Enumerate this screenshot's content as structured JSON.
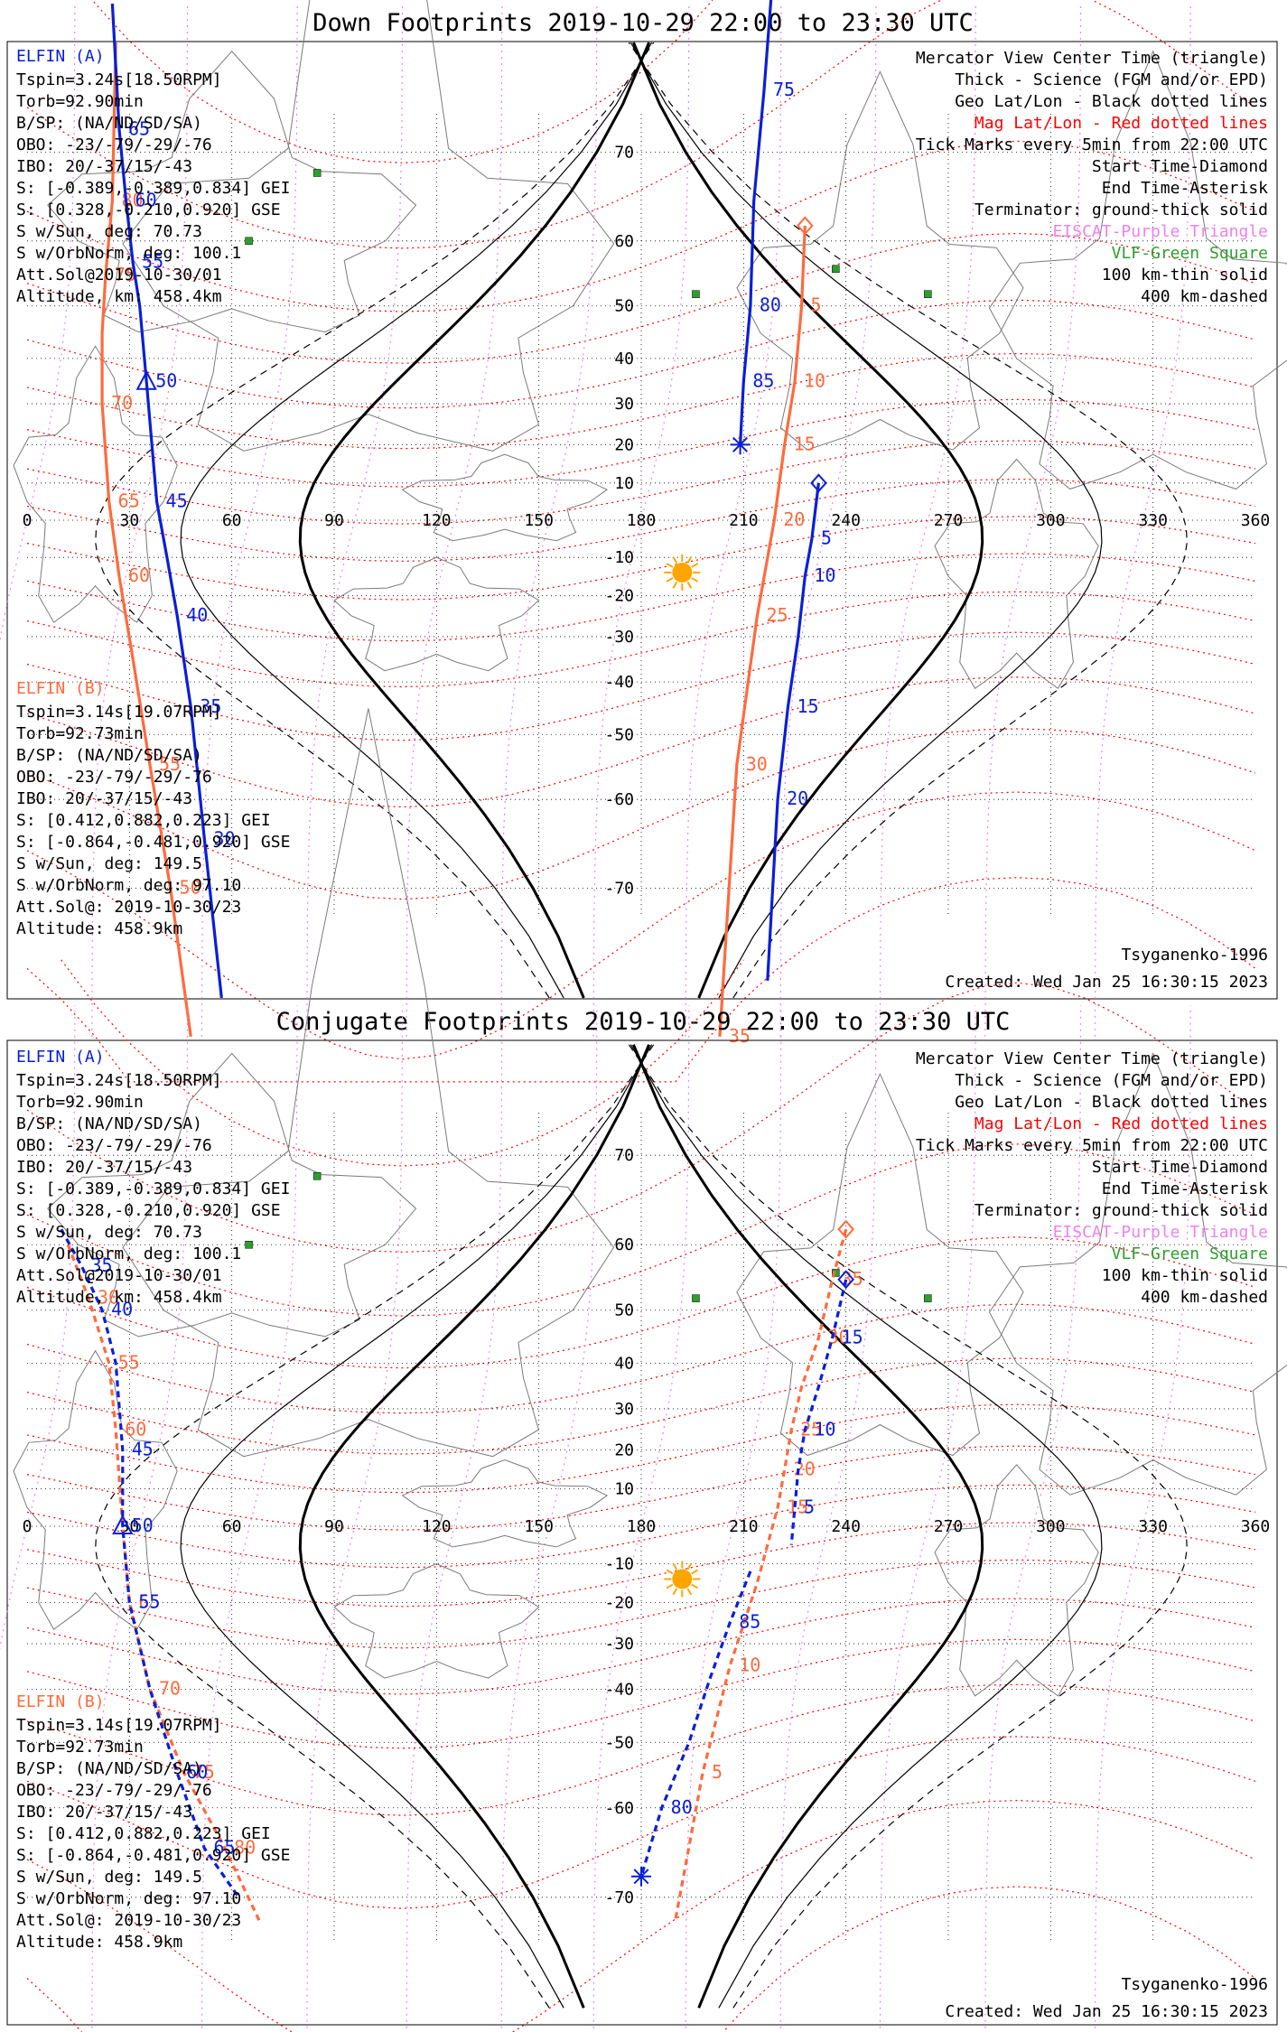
{
  "colors": {
    "elfin_a": "#0a1fd6",
    "elfin_b": "#ff6a3d",
    "mag_grid": "#ff0000",
    "geo_grid": "#000000",
    "eiscat": "#ee82ee",
    "vlf": "#2e9e2e",
    "sun": "#ffa500",
    "coast": "#7a7a7a"
  },
  "panels": [
    {
      "title": "Down Footprints 2019-10-29 22:00 to 23:30 UTC",
      "elfin_a_header": "ELFIN (A)",
      "elfin_a_lines": [
        "Tspin=3.24s[18.50RPM]",
        "Torb=92.90min",
        "B/SP: (NA/ND/SD/SA)",
        "OBO: -23/-79/-29/-76",
        "IBO: 20/-37/15/-43",
        "S: [-0.389,-0.389,0.834] GEI",
        "S: [0.328,-0.210,0.920] GSE",
        "S w/Sun, deg: 70.73",
        "S w/OrbNorm, deg: 100.1",
        "Att.Sol@2019-10-30/01",
        "Altitude, km: 458.4km"
      ],
      "elfin_b_header": "ELFIN (B)",
      "elfin_b_lines": [
        "Tspin=3.14s[19.07RPM]",
        "Torb=92.73min",
        "B/SP: (NA/ND/SD/SA)",
        "OBO: -23/-79/-29/-76",
        "IBO: 20/-37/15/-43",
        "S: [0.412,0.882,0.223] GEI",
        "S: [-0.864,-0.481,0.920] GSE",
        "S w/Sun, deg: 149.5",
        "S w/OrbNorm, deg: 97.10",
        "Att.Sol@: 2019-10-30/23",
        "Altitude: 458.9km"
      ],
      "legend": [
        {
          "text": "Mercator View Center Time (triangle)",
          "color": "#000000"
        },
        {
          "text": "Thick - Science (FGM and/or EPD)",
          "color": "#000000"
        },
        {
          "text": "Geo Lat/Lon - Black dotted lines",
          "color": "#000000"
        },
        {
          "text": "Mag Lat/Lon - Red dotted lines",
          "color": "#ff0000"
        },
        {
          "text": "Tick Marks every 5min from 22:00 UTC",
          "color": "#000000"
        },
        {
          "text": "Start Time-Diamond",
          "color": "#000000"
        },
        {
          "text": "End Time-Asterisk",
          "color": "#000000"
        },
        {
          "text": "Terminator: ground-thick solid",
          "color": "#000000"
        },
        {
          "text": "EISCAT-Purple Triangle",
          "color": "#ee82ee"
        },
        {
          "text": "VLF-Green Square",
          "color": "#2e9e2e"
        },
        {
          "text": "100 km-thin solid",
          "color": "#000000"
        },
        {
          "text": "400 km-dashed",
          "color": "#000000"
        }
      ],
      "footer_left": "",
      "footer_right_1": "Tsyganenko-1996",
      "footer_right_2": "Created: Wed Jan 25 16:30:15 2023",
      "lon_ticks": [
        "0",
        "30",
        "60",
        "90",
        "120",
        "150",
        "180",
        "210",
        "240",
        "270",
        "300",
        "330",
        "360"
      ],
      "lat_ticks": [
        "70",
        "60",
        "50",
        "40",
        "30",
        "20",
        "10",
        "-10",
        "-20",
        "-30",
        "-40",
        "-50",
        "-60",
        "-70"
      ],
      "tracks": {
        "a_left": {
          "lon": [
            25,
            27,
            29,
            31,
            33,
            35,
            38,
            41,
            44,
            48,
            52,
            57
          ],
          "lat": [
            80,
            72,
            65,
            57,
            50,
            35,
            5,
            -10,
            -25,
            -45,
            -65,
            -78
          ],
          "labels": [
            "65",
            "60",
            "55",
            "50",
            "45",
            "40",
            "35",
            "30"
          ]
        },
        "b_left": {
          "lon": [
            26,
            25,
            23,
            22,
            22,
            24,
            27,
            31,
            36,
            42,
            48
          ],
          "lat": [
            78,
            65,
            55,
            45,
            30,
            5,
            -15,
            -35,
            -55,
            -70,
            -80
          ],
          "labels": [
            "80",
            "75",
            "70",
            "65",
            "60",
            "55",
            "50"
          ]
        },
        "a_right": {
          "lon": [
            219,
            216,
            213,
            212,
            210,
            209
          ],
          "lat": [
            82,
            75,
            65,
            50,
            35,
            20
          ],
          "labels": [
            "75",
            "80",
            "85"
          ]
        },
        "b_right": {
          "lon": [
            228,
            227,
            225,
            222,
            219,
            214,
            208,
            203
          ],
          "lat": [
            62,
            50,
            35,
            20,
            0,
            -25,
            -55,
            -80
          ],
          "labels": [
            "5",
            "10",
            "15",
            "20",
            "25",
            "30",
            "35"
          ]
        },
        "a_right2": {
          "lon": [
            232,
            230,
            228,
            226,
            223,
            220,
            217
          ],
          "lat": [
            10,
            -5,
            -15,
            -30,
            -45,
            -60,
            -77
          ],
          "labels": [
            "5",
            "10",
            "15",
            "20"
          ]
        }
      }
    },
    {
      "title": "Conjugate Footprints 2019-10-29 22:00 to 23:30 UTC",
      "elfin_a_header": "ELFIN (A)",
      "elfin_a_lines": [
        "Tspin=3.24s[18.50RPM]",
        "Torb=92.90min",
        "B/SP: (NA/ND/SD/SA)",
        "OBO: -23/-79/-29/-76",
        "IBO: 20/-37/15/-43",
        "S: [-0.389,-0.389,0.834] GEI",
        "S: [0.328,-0.210,0.920] GSE",
        "S w/Sun, deg: 70.73",
        "S w/OrbNorm, deg: 100.1",
        "Att.Sol@2019-10-30/01",
        "Altitude, km: 458.4km"
      ],
      "elfin_b_header": "ELFIN (B)",
      "elfin_b_lines": [
        "Tspin=3.14s[19.07RPM]",
        "Torb=92.73min",
        "B/SP: (NA/ND/SD/SA)",
        "OBO: -23/-79/-29/-76",
        "IBO: 20/-37/15/-43",
        "S: [0.412,0.882,0.223] GEI",
        "S: [-0.864,-0.481,0.920] GSE",
        "S w/Sun, deg: 149.5",
        "S w/OrbNorm, deg: 97.10",
        "Att.Sol@: 2019-10-30/23",
        "Altitude: 458.9km"
      ],
      "legend": [
        {
          "text": "Mercator View Center Time (triangle)",
          "color": "#000000"
        },
        {
          "text": "Thick - Science (FGM and/or EPD)",
          "color": "#000000"
        },
        {
          "text": "Geo Lat/Lon - Black dotted lines",
          "color": "#000000"
        },
        {
          "text": "Mag Lat/Lon - Red dotted lines",
          "color": "#ff0000"
        },
        {
          "text": "Tick Marks every 5min from 22:00 UTC",
          "color": "#000000"
        },
        {
          "text": "Start Time-Diamond",
          "color": "#000000"
        },
        {
          "text": "End Time-Asterisk",
          "color": "#000000"
        },
        {
          "text": "Terminator: ground-thick solid",
          "color": "#000000"
        },
        {
          "text": "EISCAT-Purple Triangle",
          "color": "#ee82ee"
        },
        {
          "text": "VLF-Green Square",
          "color": "#2e9e2e"
        },
        {
          "text": "100 km-thin solid",
          "color": "#000000"
        },
        {
          "text": "400 km-dashed",
          "color": "#000000"
        }
      ],
      "footer_right_1": "Tsyganenko-1996",
      "footer_right_2": "Created: Wed Jan 25 16:30:15 2023",
      "lon_ticks": [
        "0",
        "30",
        "60",
        "90",
        "120",
        "150",
        "180",
        "210",
        "240",
        "270",
        "300",
        "330",
        "360"
      ],
      "lat_ticks": [
        "70",
        "60",
        "50",
        "40",
        "30",
        "20",
        "10",
        "-10",
        "-20",
        "-30",
        "-40",
        "-50",
        "-60",
        "-70"
      ],
      "tracks": {
        "a_left": {
          "lon": [
            10,
            16,
            22,
            26,
            28,
            28,
            30,
            36,
            44,
            52,
            62
          ],
          "lat": [
            62,
            57,
            50,
            40,
            20,
            0,
            -20,
            -40,
            -55,
            -65,
            -70
          ],
          "labels": [
            "35",
            "40",
            "45",
            "50",
            "55",
            "60",
            "65"
          ]
        },
        "b_left": {
          "lon": [
            12,
            18,
            24,
            26,
            28,
            30,
            36,
            46,
            58,
            68
          ],
          "lat": [
            60,
            52,
            40,
            25,
            0,
            -20,
            -40,
            -55,
            -65,
            -72
          ],
          "labels": [
            "30",
            "55",
            "60",
            "65",
            "70",
            "75",
            "80"
          ]
        },
        "a_right": {
          "lon": [
            212,
            206,
            200,
            194,
            186,
            180
          ],
          "lat": [
            -12,
            -25,
            -38,
            -50,
            -60,
            -68
          ],
          "labels": [
            "85",
            "80"
          ]
        },
        "b_right": {
          "lon": [
            240,
            236,
            232,
            227,
            224,
            222,
            220,
            214,
            206,
            198,
            190
          ],
          "lat": [
            62,
            55,
            45,
            35,
            25,
            15,
            5,
            -15,
            -35,
            -55,
            -72
          ],
          "labels": [
            "35",
            "30",
            "25",
            "20",
            "15",
            "10",
            "5"
          ]
        },
        "a_right2": {
          "lon": [
            240,
            236,
            232,
            228,
            226,
            225,
            224
          ],
          "lat": [
            55,
            45,
            35,
            25,
            15,
            5,
            -5
          ],
          "labels": [
            "15",
            "10",
            "5"
          ]
        }
      }
    }
  ]
}
